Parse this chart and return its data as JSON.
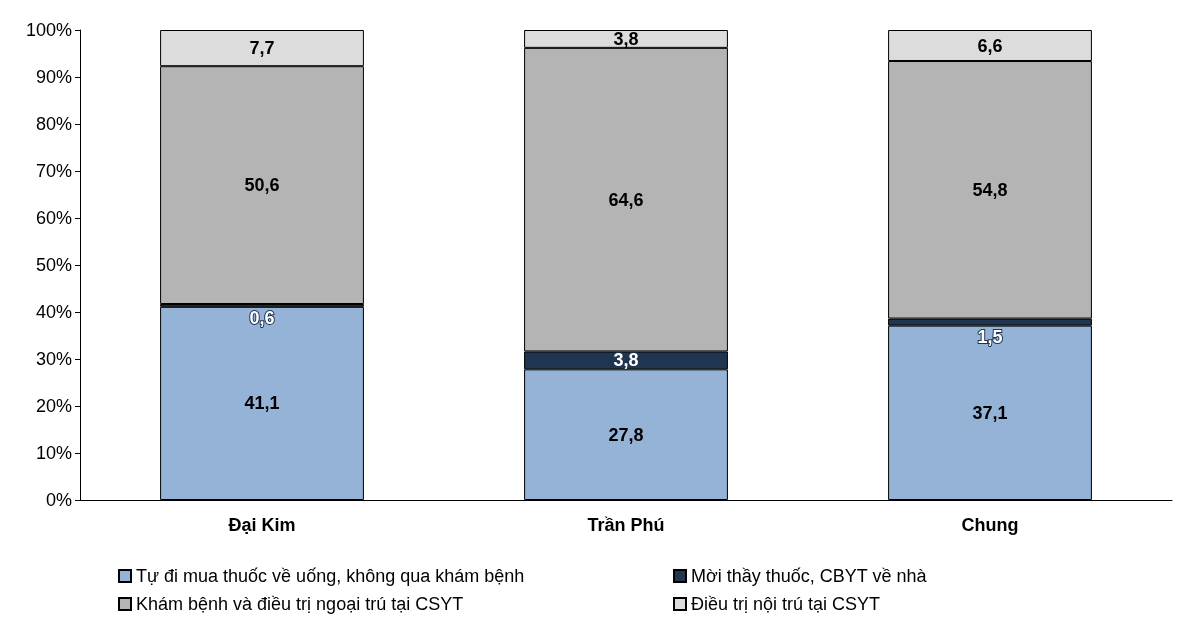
{
  "chart_data": {
    "type": "bar",
    "stacked": true,
    "categories": [
      "Đại Kim",
      "Trần Phú",
      "Chung"
    ],
    "series": [
      {
        "name": "Tự đi mua thuốc về uống, không qua khám bệnh",
        "color": "#95b3d7",
        "values": [
          41.1,
          27.8,
          37.1
        ],
        "value_labels": [
          "41,1",
          "27,8",
          "37,1"
        ]
      },
      {
        "name": "Mời thầy thuốc, CBYT về nhà",
        "color": "#1f3550",
        "values": [
          0.6,
          3.8,
          1.5
        ],
        "value_labels": [
          "0,6",
          "3,8",
          "1,5"
        ]
      },
      {
        "name": "Khám bệnh và điều trị ngoại trú tại CSYT",
        "color": "#b4b4b4",
        "values": [
          50.6,
          64.6,
          54.8
        ],
        "value_labels": [
          "50,6",
          "64,6",
          "54,8"
        ]
      },
      {
        "name": "Điều trị nội trú tại CSYT",
        "color": "#dcdcdc",
        "values": [
          7.7,
          3.8,
          6.6
        ],
        "value_labels": [
          "7,7",
          "3,8",
          "6,6"
        ]
      }
    ],
    "ylim": [
      0,
      100
    ],
    "yticks": [
      {
        "value": 0,
        "label": "0%"
      },
      {
        "value": 10,
        "label": "10%"
      },
      {
        "value": 20,
        "label": "20%"
      },
      {
        "value": 30,
        "label": "30%"
      },
      {
        "value": 40,
        "label": "40%"
      },
      {
        "value": 50,
        "label": "50%"
      },
      {
        "value": 60,
        "label": "60%"
      },
      {
        "value": 70,
        "label": "70%"
      },
      {
        "value": 80,
        "label": "80%"
      },
      {
        "value": 90,
        "label": "90%"
      },
      {
        "value": 100,
        "label": "100%"
      }
    ],
    "grid": false,
    "legend": "bottom"
  }
}
